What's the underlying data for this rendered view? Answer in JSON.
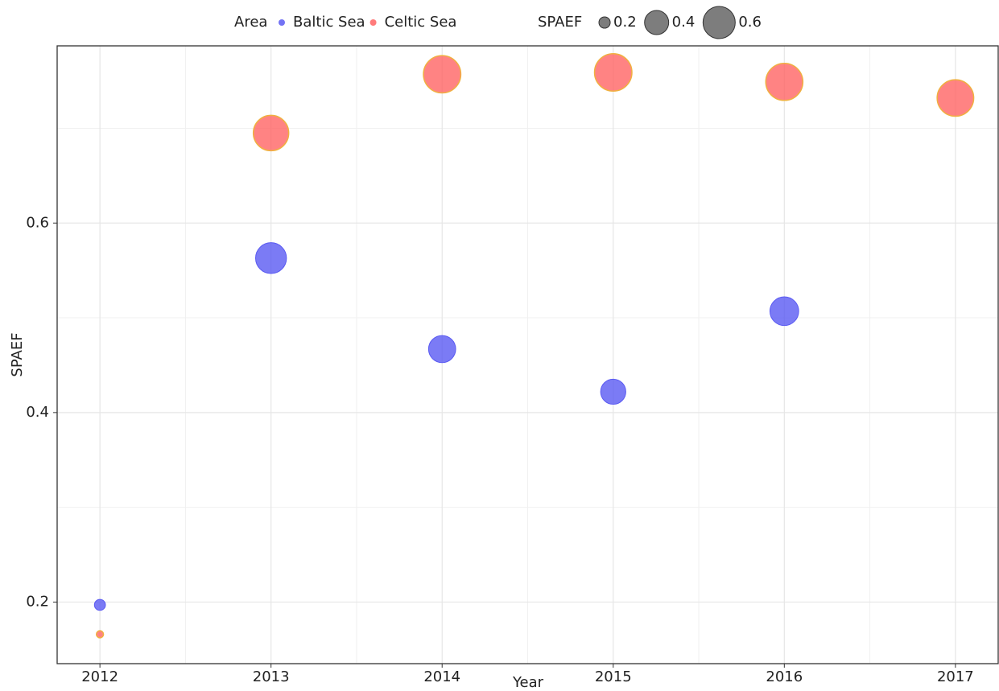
{
  "chart_data": {
    "type": "scatter",
    "x_label": "Year",
    "y_label": "SPAEF",
    "x": [
      2012,
      2013,
      2014,
      2015,
      2016,
      2017
    ],
    "series": [
      {
        "name": "Baltic Sea",
        "color": "#5a5af2",
        "values": [
          0.197,
          0.563,
          0.467,
          0.422,
          0.507,
          null
        ],
        "sizes": [
          0.197,
          0.563,
          0.467,
          0.422,
          0.507,
          null
        ]
      },
      {
        "name": "Celtic Sea",
        "color": "#ff6464",
        "edge": "#f0b040",
        "values": [
          0.166,
          0.695,
          0.757,
          0.759,
          0.749,
          0.732
        ],
        "sizes": [
          0.166,
          0.695,
          0.757,
          0.759,
          0.749,
          0.732
        ]
      }
    ],
    "legend_title": "Area",
    "size_legend_title": "SPAEF",
    "size_legend": [
      0.2,
      0.4,
      0.6
    ],
    "xlim": [
      2011.75,
      2017.25
    ],
    "xticks": [
      2012,
      2013,
      2014,
      2015,
      2016,
      2017
    ],
    "x_minor_grid": [
      2012.5,
      2013.5,
      2014.5,
      2015.5,
      2016.5
    ],
    "ylim": [
      0.135,
      0.787
    ],
    "yticks": [
      0.2,
      0.4,
      0.6
    ],
    "y_minor_grid": [
      0.3,
      0.5,
      0.7
    ],
    "grid": true
  }
}
